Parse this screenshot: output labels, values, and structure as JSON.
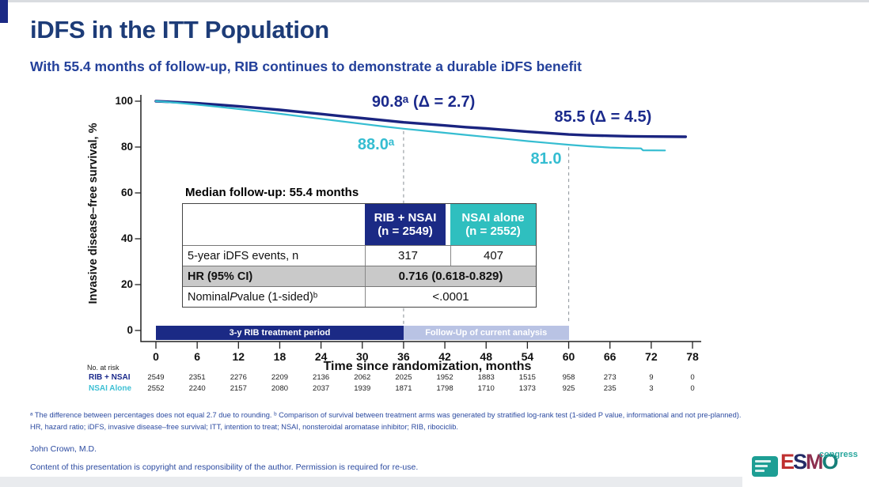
{
  "colors": {
    "accent_navy": "#1b2a85",
    "accent_cyan": "#35bdd1",
    "title_navy": "#1d3c78",
    "subtitle_blue": "#24419b",
    "table_header_teal": "#2fbfbf",
    "shaded_row_gray": "#c9c9c9",
    "followup_bar": "#b9c3e4",
    "footnote_blue": "#2b4aa0"
  },
  "slide": {
    "title": "iDFS in the ITT Population",
    "subtitle": "With 55.4 months of follow-up, RIB continues to demonstrate a durable iDFS benefit"
  },
  "chart_data": {
    "type": "line",
    "title": "",
    "xlabel": "Time since randomization, months",
    "ylabel": "Invasive disease–free survival, %",
    "xlim": [
      0,
      78
    ],
    "ylim": [
      0,
      100
    ],
    "x_ticks": [
      0,
      6,
      12,
      18,
      24,
      30,
      36,
      42,
      48,
      54,
      60,
      66,
      72,
      78
    ],
    "y_ticks": [
      0,
      20,
      40,
      60,
      80,
      100
    ],
    "grid": false,
    "reference_lines_x": [
      36,
      60
    ],
    "series": [
      {
        "name": "RIB + NSAI",
        "color": "#1a2480",
        "stroke_width": 3.4,
        "points": [
          [
            0,
            100
          ],
          [
            3,
            99.6
          ],
          [
            6,
            99.1
          ],
          [
            9,
            98.5
          ],
          [
            12,
            97.8
          ],
          [
            15,
            97.0
          ],
          [
            18,
            96.2
          ],
          [
            21,
            95.3
          ],
          [
            24,
            94.4
          ],
          [
            27,
            93.5
          ],
          [
            30,
            92.6
          ],
          [
            33,
            91.7
          ],
          [
            36,
            90.8
          ],
          [
            39,
            90.1
          ],
          [
            42,
            89.4
          ],
          [
            45,
            88.7
          ],
          [
            48,
            88.1
          ],
          [
            51,
            87.4
          ],
          [
            54,
            86.7
          ],
          [
            57,
            86.1
          ],
          [
            60,
            85.5
          ],
          [
            63,
            85.1
          ],
          [
            66,
            84.9
          ],
          [
            69,
            84.7
          ],
          [
            72,
            84.6
          ],
          [
            77,
            84.5
          ]
        ]
      },
      {
        "name": "NSAI Alone",
        "color": "#35bdd1",
        "stroke_width": 2.2,
        "points": [
          [
            0,
            100
          ],
          [
            3,
            99.3
          ],
          [
            6,
            98.5
          ],
          [
            9,
            97.6
          ],
          [
            12,
            96.6
          ],
          [
            15,
            95.6
          ],
          [
            18,
            94.5
          ],
          [
            21,
            93.4
          ],
          [
            24,
            92.3
          ],
          [
            27,
            91.2
          ],
          [
            30,
            90.1
          ],
          [
            33,
            89.0
          ],
          [
            36,
            88.0
          ],
          [
            39,
            87.1
          ],
          [
            42,
            86.2
          ],
          [
            45,
            85.3
          ],
          [
            48,
            84.4
          ],
          [
            51,
            83.5
          ],
          [
            54,
            82.6
          ],
          [
            57,
            81.8
          ],
          [
            60,
            81.0
          ],
          [
            63,
            80.3
          ],
          [
            66,
            79.8
          ],
          [
            69,
            79.5
          ],
          [
            70.5,
            79.4
          ],
          [
            70.8,
            78.6
          ],
          [
            74,
            78.5
          ]
        ]
      }
    ],
    "annotations": [
      {
        "text": "90.8ᵃ (Δ = 2.7)",
        "series": "RIB + NSAI",
        "at_month": 36,
        "value": 90.8,
        "color": "#1b2a8c"
      },
      {
        "text": "85.5 (Δ = 4.5)",
        "series": "RIB + NSAI",
        "at_month": 60,
        "value": 85.5,
        "color": "#1b2a8c"
      },
      {
        "text": "88.0ᵃ",
        "series": "NSAI Alone",
        "at_month": 36,
        "value": 88.0,
        "color": "#35bdd1"
      },
      {
        "text": "81.0",
        "series": "NSAI Alone",
        "at_month": 60,
        "value": 81.0,
        "color": "#35bdd1"
      }
    ],
    "period_bars": [
      {
        "label": "3-y RIB treatment period",
        "start": 0,
        "end": 36,
        "color": "#1b2a85",
        "text_color": "#ffffff"
      },
      {
        "label": "Follow-Up of current analysis",
        "start": 36,
        "end": 60,
        "color": "#b9c3e4",
        "text_color": "#ffffff"
      }
    ]
  },
  "results_table": {
    "caption": "Median follow-up: 55.4 months",
    "columns": [
      {
        "name": "RIB + NSAI",
        "n": "(n = 2549)",
        "color": "#1b2a85"
      },
      {
        "name": "NSAI alone",
        "n": "(n = 2552)",
        "color": "#2fbfbf"
      }
    ],
    "row_events": {
      "label": "5-year iDFS events, n",
      "rib": "317",
      "nsai": "407"
    },
    "row_hr": {
      "label": "HR (95% CI)",
      "value": "0.716 (0.618-0.829)"
    },
    "row_p": {
      "prefix": "Nominal ",
      "italic": "P",
      "suffix": " value (1-sided)ᵇ",
      "value": "<.0001"
    }
  },
  "at_risk": {
    "label": "No. at risk",
    "rows": [
      {
        "name": "RIB + NSAI",
        "color": "#1b2a8c",
        "values": [
          "2549",
          "2351",
          "2276",
          "2209",
          "2136",
          "2062",
          "2025",
          "1952",
          "1883",
          "1515",
          "958",
          "273",
          "9",
          "0"
        ]
      },
      {
        "name": "NSAI Alone",
        "color": "#3ec0d4",
        "values": [
          "2552",
          "2240",
          "2157",
          "2080",
          "2037",
          "1939",
          "1871",
          "1798",
          "1710",
          "1373",
          "925",
          "235",
          "3",
          "0"
        ]
      }
    ]
  },
  "footnotes": {
    "line1": "ᵃ The difference between percentages does not equal 2.7 due to rounding. ᵇ Comparison of survival between treatment arms was generated by stratified log-rank test (1-sided P value, informational and not pre-planned).",
    "line2": "HR, hazard ratio; iDFS, invasive disease–free survival; ITT, intention to treat; NSAI, nonsteroidal aromatase inhibitor; RIB, ribociclib."
  },
  "footer": {
    "author": "John Crown, M.D.",
    "copyright": "Content of this presentation is copyright and responsibility of the author. Permission is required for re-use."
  },
  "logo": {
    "text": "ESMO",
    "letter_colors": [
      "#bf3030",
      "#232b66",
      "#8c2f4f",
      "#167f79"
    ],
    "congress": "congress",
    "congress_color": "#2aa79e",
    "badge_color": "#1d9e94"
  }
}
